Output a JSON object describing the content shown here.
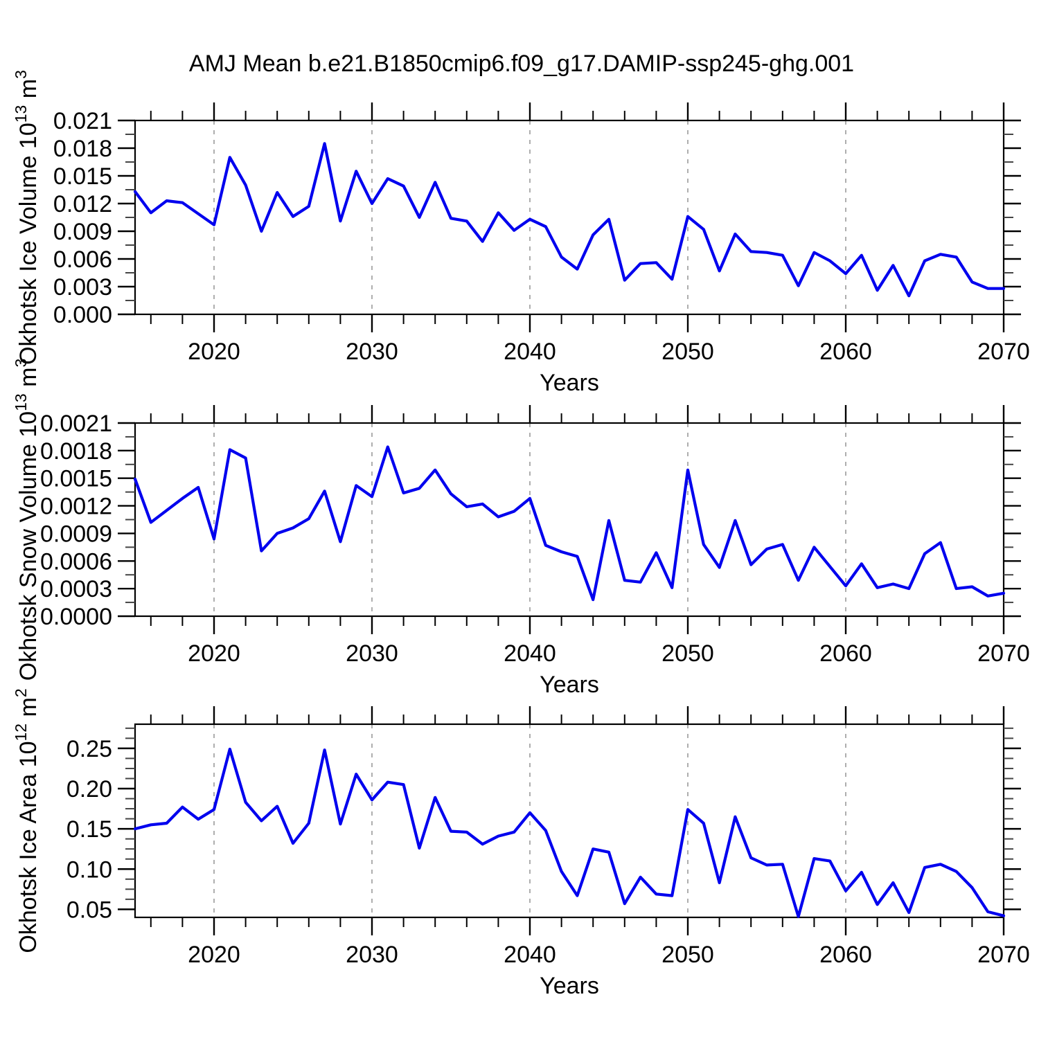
{
  "title": "AMJ Mean b.e21.B1850cmip6.f09_g17.DAMIP-ssp245-ghg.001",
  "style": {
    "line_color": "#0000ee",
    "axis_color": "#000000",
    "grid_color": "#999999",
    "background": "#ffffff"
  },
  "x_axis": {
    "label": "Years",
    "tick_labels": [
      "2020",
      "2030",
      "2040",
      "2050",
      "2060",
      "2070"
    ],
    "tick_values": [
      2020,
      2030,
      2040,
      2050,
      2060,
      2070
    ],
    "minor_step": 2,
    "grid_years": [
      2020,
      2030,
      2040,
      2050,
      2060
    ],
    "range": [
      2015,
      2070
    ]
  },
  "chart_data": [
    {
      "type": "line",
      "id": "ice-volume",
      "ylabel": "Okhotsk Ice Volume 10^13 m^3",
      "ylabel_rich": {
        "base": "Okhotsk Ice Volume 10",
        "sup1": "13",
        "mid": " m",
        "sup2": "3"
      },
      "xlabel": "Years",
      "ylim": [
        0,
        0.021
      ],
      "ytick_values": [
        0.0,
        0.003,
        0.006,
        0.009,
        0.012,
        0.015,
        0.018,
        0.021
      ],
      "ytick_labels": [
        "0.000",
        "0.003",
        "0.006",
        "0.009",
        "0.012",
        "0.015",
        "0.018",
        "0.021"
      ],
      "y_minor_step": 0.0015,
      "grid": "vertical-dashed",
      "legend": "none",
      "x": [
        2015,
        2016,
        2017,
        2018,
        2019,
        2020,
        2021,
        2022,
        2023,
        2024,
        2025,
        2026,
        2027,
        2028,
        2029,
        2030,
        2031,
        2032,
        2033,
        2034,
        2035,
        2036,
        2037,
        2038,
        2039,
        2040,
        2041,
        2042,
        2043,
        2044,
        2045,
        2046,
        2047,
        2048,
        2049,
        2050,
        2051,
        2052,
        2053,
        2054,
        2055,
        2056,
        2057,
        2058,
        2059,
        2060,
        2061,
        2062,
        2063,
        2064,
        2065,
        2066,
        2067,
        2068,
        2069,
        2070
      ],
      "values": [
        0.0133,
        0.011,
        0.0123,
        0.0121,
        0.0109,
        0.0097,
        0.017,
        0.014,
        0.009,
        0.0132,
        0.0106,
        0.0117,
        0.0185,
        0.0101,
        0.0155,
        0.012,
        0.0147,
        0.0139,
        0.0105,
        0.0143,
        0.0104,
        0.0101,
        0.0079,
        0.011,
        0.0091,
        0.0103,
        0.0095,
        0.0062,
        0.0049,
        0.0086,
        0.0103,
        0.0037,
        0.0055,
        0.0056,
        0.0038,
        0.0106,
        0.0092,
        0.0047,
        0.0087,
        0.0068,
        0.0067,
        0.0064,
        0.0031,
        0.0067,
        0.0058,
        0.0044,
        0.0064,
        0.0026,
        0.0053,
        0.002,
        0.0058,
        0.0065,
        0.0062,
        0.0035,
        0.0028,
        0.0028
      ]
    },
    {
      "type": "line",
      "id": "snow-volume",
      "ylabel": "Okhotsk Snow Volume 10^13 m^3",
      "ylabel_rich": {
        "base": "Okhotsk Snow Volume 10",
        "sup1": "13",
        "mid": " m",
        "sup2": "3"
      },
      "xlabel": "Years",
      "ylim": [
        0,
        0.0021
      ],
      "ytick_values": [
        0.0,
        0.0003,
        0.0006,
        0.0009,
        0.0012,
        0.0015,
        0.0018,
        0.0021
      ],
      "ytick_labels": [
        "0.0000",
        "0.0003",
        "0.0006",
        "0.0009",
        "0.0012",
        "0.0015",
        "0.0018",
        "0.0021"
      ],
      "y_minor_step": 0.00015,
      "grid": "vertical-dashed",
      "legend": "none",
      "x": [
        2015,
        2016,
        2017,
        2018,
        2019,
        2020,
        2021,
        2022,
        2023,
        2024,
        2025,
        2026,
        2027,
        2028,
        2029,
        2030,
        2031,
        2032,
        2033,
        2034,
        2035,
        2036,
        2037,
        2038,
        2039,
        2040,
        2041,
        2042,
        2043,
        2044,
        2045,
        2046,
        2047,
        2048,
        2049,
        2050,
        2051,
        2052,
        2053,
        2054,
        2055,
        2056,
        2057,
        2058,
        2059,
        2060,
        2061,
        2062,
        2063,
        2064,
        2065,
        2066,
        2067,
        2068,
        2069,
        2070
      ],
      "values": [
        0.00149,
        0.00102,
        0.00115,
        0.00128,
        0.0014,
        0.00084,
        0.00181,
        0.00172,
        0.00071,
        0.0009,
        0.00096,
        0.00106,
        0.00136,
        0.00081,
        0.00142,
        0.0013,
        0.00184,
        0.00134,
        0.00139,
        0.00159,
        0.00133,
        0.00119,
        0.00122,
        0.00108,
        0.00114,
        0.00128,
        0.00077,
        0.0007,
        0.00065,
        0.00018,
        0.00104,
        0.00039,
        0.00037,
        0.00069,
        0.00031,
        0.00159,
        0.00078,
        0.00053,
        0.00104,
        0.00056,
        0.00073,
        0.00078,
        0.00039,
        0.00075,
        0.00054,
        0.00033,
        0.00057,
        0.00031,
        0.00035,
        0.0003,
        0.00068,
        0.0008,
        0.0003,
        0.00032,
        0.00022,
        0.00025
      ]
    },
    {
      "type": "line",
      "id": "ice-area",
      "ylabel": "Okhotsk Ice Area 10^12 m^2",
      "ylabel_rich": {
        "base": "Okhotsk Ice Area 10",
        "sup1": "12",
        "mid": " m",
        "sup2": "2"
      },
      "xlabel": "Years",
      "ylim": [
        0.04,
        0.28
      ],
      "ytick_values": [
        0.05,
        0.1,
        0.15,
        0.2,
        0.25
      ],
      "ytick_labels": [
        "0.05",
        "0.10",
        "0.15",
        "0.20",
        "0.25"
      ],
      "y_minor_step": 0.0125,
      "y_minor_anchor": 0.05,
      "grid": "vertical-dashed",
      "legend": "none",
      "x": [
        2015,
        2016,
        2017,
        2018,
        2019,
        2020,
        2021,
        2022,
        2023,
        2024,
        2025,
        2026,
        2027,
        2028,
        2029,
        2030,
        2031,
        2032,
        2033,
        2034,
        2035,
        2036,
        2037,
        2038,
        2039,
        2040,
        2041,
        2042,
        2043,
        2044,
        2045,
        2046,
        2047,
        2048,
        2049,
        2050,
        2051,
        2052,
        2053,
        2054,
        2055,
        2056,
        2057,
        2058,
        2059,
        2060,
        2061,
        2062,
        2063,
        2064,
        2065,
        2066,
        2067,
        2068,
        2069,
        2070
      ],
      "values": [
        0.15,
        0.155,
        0.157,
        0.177,
        0.162,
        0.174,
        0.249,
        0.183,
        0.16,
        0.178,
        0.132,
        0.157,
        0.248,
        0.156,
        0.218,
        0.186,
        0.208,
        0.205,
        0.126,
        0.189,
        0.147,
        0.146,
        0.131,
        0.141,
        0.146,
        0.17,
        0.148,
        0.097,
        0.067,
        0.125,
        0.121,
        0.057,
        0.09,
        0.069,
        0.067,
        0.174,
        0.157,
        0.083,
        0.165,
        0.114,
        0.105,
        0.106,
        0.041,
        0.113,
        0.11,
        0.073,
        0.096,
        0.056,
        0.083,
        0.046,
        0.102,
        0.106,
        0.097,
        0.077,
        0.047,
        0.042
      ]
    }
  ]
}
